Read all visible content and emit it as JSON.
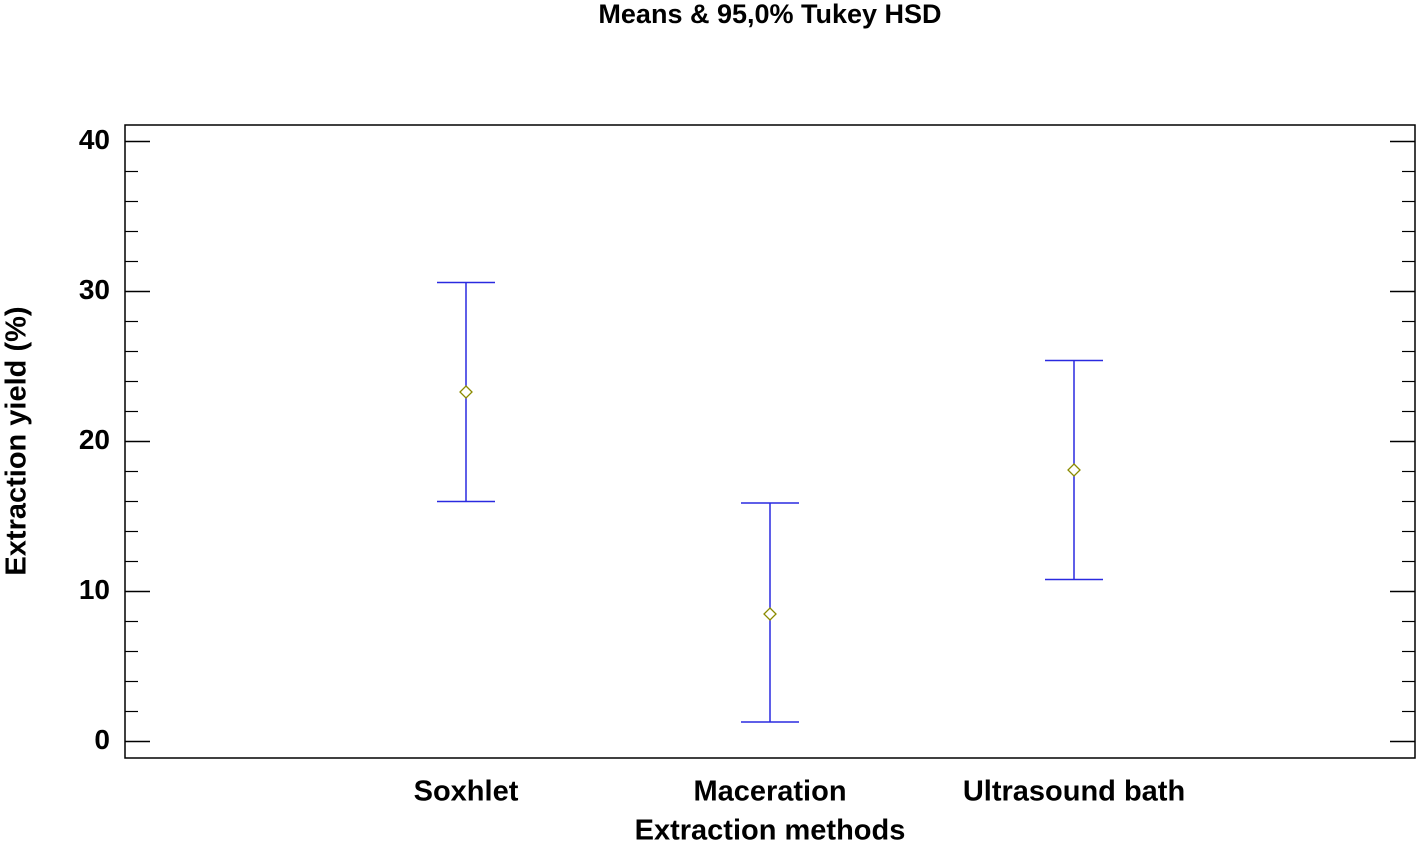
{
  "chart_data": {
    "type": "interval",
    "title": "Means & 95,0% Tukey HSD",
    "x_label": "Extraction methods",
    "y_label": "Extraction yield (%)",
    "categories": [
      "Soxhlet",
      "Maceration",
      "Ultrasound bath"
    ],
    "series": [
      {
        "name": "Mean",
        "color": "#8b8b00",
        "interval_color": "#2a2ae0",
        "values": [
          23.3,
          8.5,
          18.1
        ],
        "lower": [
          16.0,
          1.3,
          10.8
        ],
        "upper": [
          30.6,
          15.9,
          25.4
        ]
      }
    ],
    "ylim": [
      -1.1,
      41.1
    ],
    "yticks": [
      0,
      10,
      20,
      30,
      40
    ],
    "yticks_minor": [
      2,
      4,
      6,
      8,
      12,
      14,
      16,
      18,
      22,
      24,
      26,
      28,
      32,
      34,
      36,
      38
    ]
  }
}
